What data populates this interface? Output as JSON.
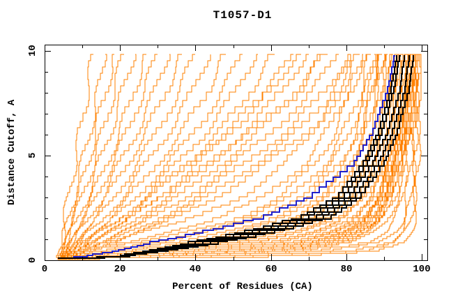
{
  "chart_data": {
    "type": "line",
    "title": "T1057-D1",
    "xlabel": "Percent of Residues (CA)",
    "ylabel": "Distance Cutoff, A",
    "xlim": [
      0,
      101.5
    ],
    "ylim": [
      0,
      10.3
    ],
    "x_ticks": [
      0,
      20,
      40,
      60,
      80,
      100
    ],
    "x_minor_step": 10,
    "y_ticks": [
      0,
      5,
      10
    ],
    "y_minor_step": 1,
    "grid": false,
    "legend": "none",
    "colors": {
      "models": "#ff8000",
      "reference": "#2121cc",
      "highlighted": "#000000",
      "axis": "#000000",
      "background": "#ffffff"
    },
    "cutoffs": [
      0.15,
      0.4,
      0.8,
      1.3,
      2,
      3,
      4.5,
      6,
      8,
      9.8
    ],
    "origin_point": [
      3.5,
      0.07
    ],
    "series": [
      {
        "name": "all-models",
        "color": "models",
        "width": 1,
        "curves": [
          [
            3.5,
            4,
            4.5,
            5,
            5.5,
            6.5,
            8,
            9.5,
            11.5,
            13
          ],
          [
            4,
            4.5,
            5,
            5.5,
            6.5,
            8,
            10,
            12,
            14.5,
            16
          ],
          [
            4,
            4.5,
            5.5,
            6,
            7,
            9,
            11.5,
            13.5,
            16.5,
            18.5
          ],
          [
            4,
            5,
            5.5,
            6.5,
            8,
            10,
            13,
            15.5,
            18.5,
            21
          ],
          [
            4.5,
            5,
            6,
            7,
            9,
            11.5,
            14.5,
            17.5,
            21,
            24
          ],
          [
            4.5,
            5.5,
            6.5,
            8,
            10,
            13,
            16.5,
            20,
            24,
            27
          ],
          [
            5,
            5.5,
            7,
            8.5,
            11,
            14,
            18,
            22,
            26.5,
            30
          ],
          [
            5,
            6,
            7.5,
            9,
            12,
            15.5,
            20,
            24.5,
            29.5,
            33
          ],
          [
            5,
            6,
            8,
            10,
            13,
            17,
            22,
            27,
            32.5,
            36.5
          ],
          [
            5.5,
            6.5,
            8.5,
            11,
            14.5,
            19,
            24.5,
            30,
            36,
            40
          ],
          [
            5.5,
            7,
            9,
            12,
            16,
            21,
            27,
            33,
            39.5,
            44
          ],
          [
            6,
            7.5,
            10,
            13,
            17.5,
            23,
            30,
            36.5,
            43.5,
            48
          ],
          [
            6,
            8,
            10.5,
            14,
            19,
            25,
            32.5,
            40,
            47.5,
            52.5
          ],
          [
            6,
            8,
            11,
            15,
            20.5,
            27,
            35,
            43,
            51,
            56.5
          ],
          [
            6.5,
            8.5,
            12,
            16,
            22,
            29,
            38,
            46.5,
            55,
            61
          ],
          [
            6.5,
            9,
            12.5,
            17,
            23.5,
            31,
            40.5,
            50,
            59.5,
            66
          ],
          [
            7,
            9,
            13,
            18,
            25,
            33,
            43.5,
            53,
            63.5,
            70
          ],
          [
            7,
            10,
            14,
            19.5,
            27,
            36,
            47,
            57,
            68,
            74
          ],
          [
            7.5,
            10,
            15,
            21,
            29,
            38.5,
            50,
            60.5,
            71.5,
            78
          ],
          [
            7.5,
            11,
            16,
            22.5,
            31,
            41,
            53,
            64,
            75,
            81
          ],
          [
            8,
            11,
            17,
            24,
            33,
            44,
            56,
            67,
            78,
            83.5
          ],
          [
            8,
            12,
            18,
            25.5,
            35,
            46.5,
            59,
            70,
            80.5,
            85.5
          ],
          [
            5,
            7,
            10,
            14,
            20,
            28,
            38,
            48,
            60,
            68
          ],
          [
            5,
            8,
            11,
            16,
            23,
            32,
            44,
            55,
            67,
            75
          ],
          [
            6,
            20,
            38,
            52,
            64,
            73,
            80,
            83.5,
            86.5,
            88
          ],
          [
            6,
            22,
            40,
            54,
            66,
            75,
            81,
            84.5,
            87,
            88.5
          ],
          [
            7,
            24,
            42,
            56,
            68,
            76,
            82,
            85.5,
            88,
            89.5
          ],
          [
            7,
            26,
            44,
            58,
            69,
            77,
            83,
            86.5,
            88.5,
            90
          ],
          [
            7,
            28,
            46,
            60,
            71,
            78.5,
            84,
            87,
            89.5,
            90.5
          ],
          [
            8,
            30,
            48,
            62,
            72,
            79.5,
            85,
            88,
            90,
            91
          ],
          [
            8,
            32,
            50,
            64,
            74,
            81,
            86,
            88.5,
            90.5,
            91.5
          ],
          [
            8,
            34,
            52,
            66,
            75,
            82,
            86.5,
            89,
            91,
            92
          ],
          [
            9,
            36,
            54,
            68,
            76.5,
            83,
            87.5,
            90,
            91.5,
            92.5
          ],
          [
            9,
            38,
            56,
            69,
            78,
            84,
            88,
            90.5,
            92,
            93
          ],
          [
            9,
            40,
            58,
            71,
            79,
            85,
            89,
            91,
            92.5,
            93.5
          ],
          [
            10,
            42,
            60,
            72,
            80,
            85.5,
            89.5,
            91.5,
            93,
            94
          ],
          [
            10,
            44,
            62,
            74,
            81.5,
            86.5,
            90,
            92,
            93.5,
            94.5
          ],
          [
            10,
            46,
            64,
            75,
            82.5,
            87.5,
            90.5,
            92.5,
            94,
            95
          ],
          [
            11,
            48,
            66,
            76.5,
            83.5,
            88,
            91,
            93,
            94.5,
            95.5
          ],
          [
            11,
            50,
            67,
            78,
            84.5,
            89,
            91.5,
            93.5,
            95,
            96
          ],
          [
            12,
            52,
            69,
            79,
            85.5,
            89.5,
            92,
            94,
            95.5,
            96.5
          ],
          [
            12,
            54,
            70,
            80,
            86,
            90,
            92.5,
            94.5,
            96,
            97
          ],
          [
            13,
            56,
            72,
            81,
            87,
            90.5,
            93,
            95,
            96.5,
            97.3
          ],
          [
            13,
            58,
            73,
            82,
            87.5,
            91,
            93.5,
            95.5,
            97,
            97.8
          ],
          [
            14,
            60,
            74,
            83,
            88,
            91.5,
            94,
            96,
            97.3,
            98.2
          ],
          [
            14,
            62,
            76,
            84,
            89,
            92,
            94.5,
            96.3,
            97.7,
            98.5
          ],
          [
            15,
            64,
            77,
            85,
            89.5,
            92.5,
            95,
            96.7,
            98,
            98.8
          ],
          [
            15,
            66,
            78,
            86,
            90,
            93,
            95.5,
            97,
            98.3,
            99
          ],
          [
            5,
            12,
            24,
            38,
            52,
            63,
            72,
            77,
            82,
            84.5
          ],
          [
            5,
            14,
            27,
            41,
            55,
            66,
            74.5,
            79.5,
            84,
            86.5
          ],
          [
            6,
            16,
            30,
            44,
            58,
            68,
            76.5,
            81,
            85.5,
            87.5
          ],
          [
            6,
            18,
            34,
            48,
            61,
            71,
            78.5,
            82.5,
            86.5,
            88.5
          ],
          [
            5,
            10,
            20,
            33,
            47,
            59,
            69,
            75,
            80.5,
            83
          ],
          [
            4,
            8,
            16,
            27,
            40,
            53,
            64,
            71,
            77.5,
            81
          ],
          [
            20,
            55,
            70,
            79,
            85,
            89,
            92,
            94,
            95.8,
            96.8
          ],
          [
            25,
            58,
            72,
            80,
            86,
            89.5,
            92.5,
            94.3,
            96,
            97
          ],
          [
            30,
            62,
            75,
            82,
            87,
            90.5,
            93.3,
            95,
            96.7,
            97.5
          ],
          [
            35,
            65,
            77,
            83.5,
            88,
            91,
            93.8,
            95.5,
            97,
            98
          ],
          [
            40,
            68,
            79,
            85,
            89,
            92,
            94.3,
            96,
            97.5,
            98.3
          ],
          [
            16,
            50,
            68,
            78,
            84.5,
            88.5,
            91.8,
            93.8,
            95.4,
            96.4
          ],
          [
            45,
            75,
            88,
            93,
            95,
            96.2,
            97,
            97.6,
            98.2,
            98.6
          ],
          [
            50,
            80,
            91,
            95,
            96.5,
            97.3,
            98,
            98.4,
            98.8,
            99
          ],
          [
            55,
            85,
            93,
            96,
            97.3,
            98,
            98.5,
            98.8,
            99.2,
            99.4
          ],
          [
            60,
            88,
            95,
            97,
            98,
            98.5,
            98.9,
            99.2,
            99.5,
            99.6
          ],
          [
            35,
            70,
            85,
            91,
            93.5,
            95,
            96,
            96.8,
            97.5,
            98
          ],
          [
            28,
            64,
            81,
            88,
            91.5,
            93.5,
            95,
            96.2,
            97.2,
            97.8
          ]
        ]
      },
      {
        "name": "reference-model",
        "color": "reference",
        "width": 2,
        "curves": [
          [
            10,
            18,
            28,
            42,
            58,
            71,
            82,
            87,
            91,
            93
          ]
        ]
      },
      {
        "name": "highlighted-models",
        "color": "highlighted",
        "width": 2,
        "curves": [
          [
            19,
            26,
            38,
            53,
            68,
            78,
            84.5,
            88.5,
            91.8,
            93.6
          ],
          [
            20,
            27,
            40,
            55,
            70,
            79.5,
            85.5,
            89.5,
            92.6,
            94.4
          ],
          [
            20,
            28,
            42,
            57,
            72,
            81,
            87,
            91,
            94.2,
            95.6
          ],
          [
            21,
            29,
            44,
            59,
            74,
            82.5,
            88.5,
            92.3,
            95.5,
            96.9
          ],
          [
            21,
            30,
            46,
            61,
            76,
            84,
            90,
            93.5,
            96.6,
            98
          ]
        ]
      }
    ]
  }
}
